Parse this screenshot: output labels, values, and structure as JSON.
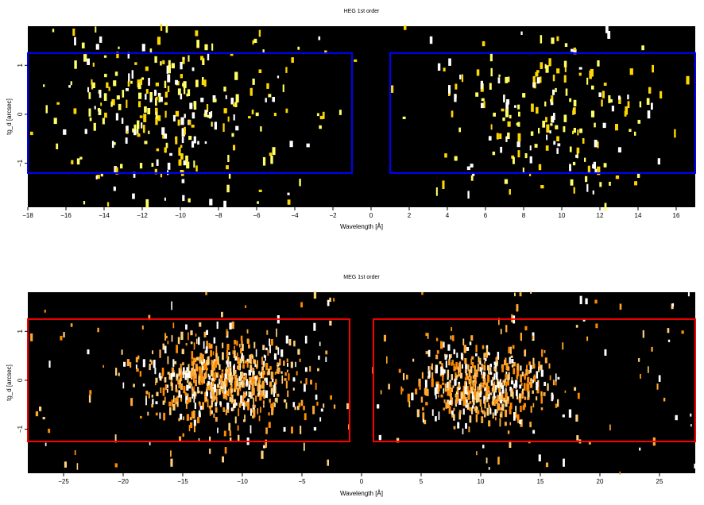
{
  "chart_data": [
    {
      "type": "heatmap",
      "title": "HEG 1st order",
      "xlabel": "Wavelength [Å]",
      "ylabel": "tg_d [arcsec]",
      "xlim": [
        -18,
        17
      ],
      "ylim": [
        -1.9,
        1.8
      ],
      "xticks": [
        -18,
        -16,
        -14,
        -12,
        -10,
        -8,
        -6,
        -4,
        -2,
        0,
        2,
        4,
        6,
        8,
        10,
        12,
        14,
        16
      ],
      "yticks": [
        -1,
        0,
        1
      ],
      "grid": false,
      "cmap_colors": [
        "#ffd700",
        "#ffff66",
        "#ffffff"
      ],
      "region_color": "#0000ff",
      "regions": [
        {
          "x": [
            -18,
            -1
          ],
          "y": [
            -1.2,
            1.25
          ]
        },
        {
          "x": [
            1,
            17
          ],
          "y": [
            -1.2,
            1.25
          ]
        }
      ],
      "clusters": [
        {
          "center_x": -10.5,
          "center_y": 0.1,
          "spread_x": 3.2,
          "spread_y": 0.9,
          "count": 260
        },
        {
          "center_x": 9.5,
          "center_y": 0.0,
          "spread_x": 2.6,
          "spread_y": 0.85,
          "count": 190
        }
      ],
      "background_count": 80,
      "event_width": 0.12,
      "event_height": 0.05
    },
    {
      "type": "heatmap",
      "title": "MEG 1st order",
      "xlabel": "Wavelength [Å]",
      "ylabel": "tg_d [arcsec]",
      "xlim": [
        -28,
        28
      ],
      "ylim": [
        -1.9,
        1.8
      ],
      "xticks": [
        -25,
        -20,
        -15,
        -10,
        -5,
        0,
        5,
        10,
        15,
        20,
        25
      ],
      "yticks": [
        -1,
        0,
        1
      ],
      "grid": false,
      "cmap_colors": [
        "#ff8c00",
        "#ffa733",
        "#ffd27f",
        "#ffffff"
      ],
      "region_color": "#ff0000",
      "regions": [
        {
          "x": [
            -28,
            -1
          ],
          "y": [
            -1.25,
            1.25
          ]
        },
        {
          "x": [
            1,
            28
          ],
          "y": [
            -1.25,
            1.25
          ]
        }
      ],
      "clusters": [
        {
          "center_x": -11.5,
          "center_y": 0.0,
          "spread_x": 3.6,
          "spread_y": 0.42,
          "count": 650
        },
        {
          "center_x": 10.0,
          "center_y": -0.1,
          "spread_x": 3.0,
          "spread_y": 0.42,
          "count": 520
        }
      ],
      "background_count": 160,
      "event_width": 0.15,
      "event_height": 0.05
    }
  ]
}
